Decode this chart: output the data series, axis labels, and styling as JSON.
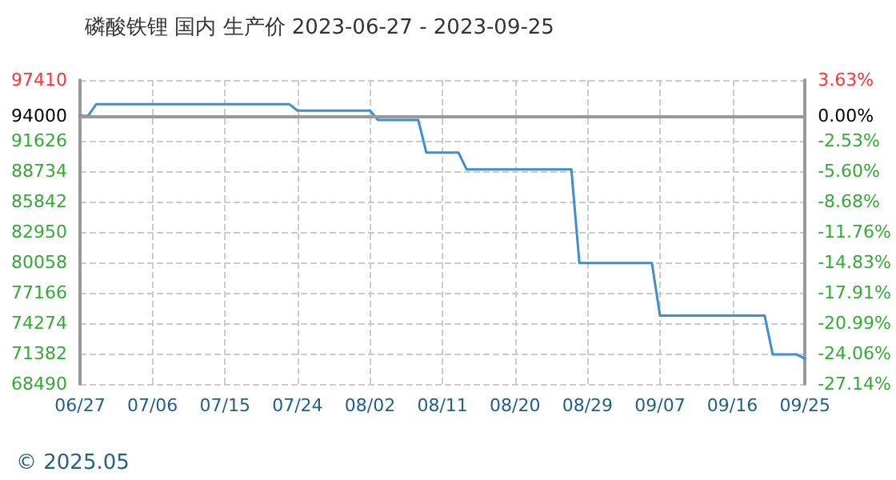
{
  "chart_data": {
    "type": "line",
    "title": "磷酸铁锂 国内 生产价 2023-06-27 - 2023-09-25",
    "x": [
      "2023-06-27",
      "2023-06-28",
      "2023-06-29",
      "2023-07-23",
      "2023-07-24",
      "2023-08-02",
      "2023-08-03",
      "2023-08-08",
      "2023-08-09",
      "2023-08-13",
      "2023-08-14",
      "2023-08-27",
      "2023-08-28",
      "2023-09-06",
      "2023-09-07",
      "2023-09-20",
      "2023-09-21",
      "2023-09-24",
      "2023-09-25"
    ],
    "series": [
      {
        "color": "#3d8fd1",
        "values": [
          94000,
          94000,
          95100,
          95100,
          94500,
          94500,
          93600,
          93600,
          90500,
          90500,
          88900,
          88900,
          80000,
          80000,
          75000,
          75000,
          71300,
          71300,
          70900
        ]
      }
    ],
    "xlim": [
      "2023-06-27",
      "2023-09-25"
    ],
    "xticks": [
      {
        "value": "2023-06-27",
        "label": "06/27"
      },
      {
        "value": "2023-07-06",
        "label": "07/06"
      },
      {
        "value": "2023-07-15",
        "label": "07/15"
      },
      {
        "value": "2023-07-24",
        "label": "07/24"
      },
      {
        "value": "2023-08-02",
        "label": "08/02"
      },
      {
        "value": "2023-08-11",
        "label": "08/11"
      },
      {
        "value": "2023-08-20",
        "label": "08/20"
      },
      {
        "value": "2023-08-29",
        "label": "08/29"
      },
      {
        "value": "2023-09-07",
        "label": "09/07"
      },
      {
        "value": "2023-09-16",
        "label": "09/16"
      },
      {
        "value": "2023-09-25",
        "label": "09/25"
      }
    ],
    "ylim": [
      68490,
      97410
    ],
    "yticks": [
      68490,
      71382,
      74274,
      77166,
      80058,
      82950,
      85842,
      88734,
      91626,
      94000,
      97410
    ],
    "y2lim": [
      -27.14,
      3.63
    ],
    "y2ticks": [
      {
        "value": -27.14,
        "label": "-27.14%"
      },
      {
        "value": -24.06,
        "label": "-24.06%"
      },
      {
        "value": -20.99,
        "label": "-20.99%"
      },
      {
        "value": -17.91,
        "label": "-17.91%"
      },
      {
        "value": -14.83,
        "label": "-14.83%"
      },
      {
        "value": -11.76,
        "label": "-11.76%"
      },
      {
        "value": -8.68,
        "label": "-8.68%"
      },
      {
        "value": -5.6,
        "label": "-5.60%"
      },
      {
        "value": -2.53,
        "label": "-2.53%"
      },
      {
        "value": 0,
        "label": "0.00%"
      },
      {
        "value": 3.63,
        "label": "3.63%"
      }
    ],
    "ref_lines": [
      {
        "axis": "y",
        "value": 94000,
        "color": "#999999"
      }
    ],
    "grid": true,
    "marker": "none",
    "line_style": "solid",
    "annotations": [
      "© 2025.05"
    ]
  }
}
